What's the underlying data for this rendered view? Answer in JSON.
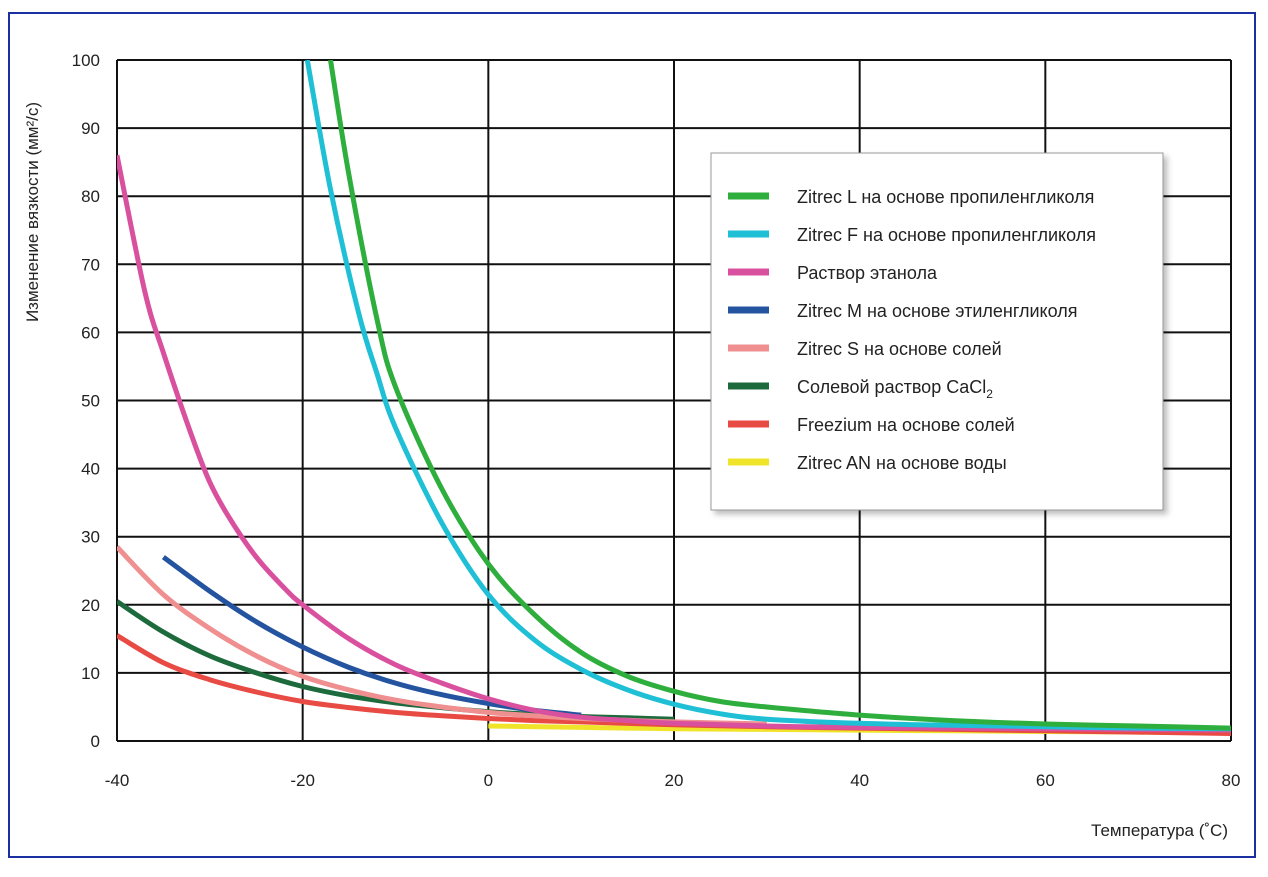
{
  "chart_data": {
    "type": "line",
    "ylabel": "Изменение вязкости (мм²/с)",
    "xlabel": "Температура (˚С)",
    "xlim": [
      -40,
      80
    ],
    "ylim": [
      0,
      100
    ],
    "xticks": [
      -40,
      -20,
      0,
      20,
      40,
      60,
      80
    ],
    "yticks": [
      0,
      10,
      20,
      30,
      40,
      50,
      60,
      70,
      80,
      90,
      100
    ],
    "xtick_labels": [
      "-40",
      "-20",
      "0",
      "20",
      "40",
      "60",
      "80"
    ],
    "ytick_labels": [
      "0",
      "10",
      "20",
      "30",
      "40",
      "50",
      "60",
      "70",
      "80",
      "90",
      "100"
    ],
    "grid": true,
    "legend_position": "top-right",
    "series": [
      {
        "name": "Zitrec L на основе пропиленгликоля",
        "color": "#2eae3c",
        "x": [
          -17,
          -15,
          -12,
          -10,
          -5,
          0,
          5,
          10,
          15,
          20,
          25,
          30,
          40,
          50,
          60,
          70,
          80
        ],
        "y": [
          100,
          83,
          62,
          52,
          37,
          26,
          18.5,
          13,
          9.5,
          7.3,
          5.8,
          5,
          3.8,
          3,
          2.5,
          2.2,
          1.9
        ]
      },
      {
        "name": "Zitrec F на основе пропиленгликоля",
        "color": "#1fbfd6",
        "x": [
          -19.5,
          -17,
          -14,
          -12,
          -10,
          -5,
          0,
          5,
          10,
          15,
          20,
          25,
          30,
          40,
          50,
          60,
          70,
          80
        ],
        "y": [
          100,
          81,
          63,
          54,
          46,
          32,
          21.5,
          14.8,
          10.5,
          7.5,
          5.4,
          4,
          3.2,
          2.6,
          2.3,
          2.1,
          1.9,
          1.8
        ]
      },
      {
        "name": "Раствор этанола",
        "color": "#d9519e",
        "x": [
          -40,
          -37,
          -35,
          -32,
          -30,
          -28,
          -25,
          -22,
          -20,
          -15,
          -10,
          -5,
          0,
          5,
          10,
          15,
          20,
          30,
          40,
          60,
          80
        ],
        "y": [
          86,
          66,
          57,
          45,
          38,
          33,
          27,
          22.5,
          20,
          15,
          11.2,
          8.5,
          6.2,
          4.5,
          3.5,
          3,
          2.6,
          2.2,
          2,
          1.8,
          1.6
        ]
      },
      {
        "name": "Zitrec M на основе этиленгликоля",
        "color": "#2453a0",
        "x": [
          -35,
          -30,
          -25,
          -20,
          -15,
          -10,
          -5,
          0,
          5,
          10
        ],
        "y": [
          27,
          22,
          17.5,
          13.8,
          10.8,
          8.5,
          6.8,
          5.5,
          4.5,
          3.8
        ]
      },
      {
        "name": "Zitrec S на основе солей",
        "color": "#ef8f8f",
        "x": [
          -40,
          -35,
          -30,
          -25,
          -20,
          -15,
          -10,
          -5,
          0,
          5,
          10,
          20,
          30
        ],
        "y": [
          28.5,
          21.5,
          16.5,
          12.5,
          9.5,
          7.5,
          6,
          5,
          4.2,
          3.7,
          3.3,
          2.8,
          2.5
        ]
      },
      {
        "name": "Солевой раствор CaCl2",
        "color": "#1d6a3c",
        "x": [
          -40,
          -35,
          -30,
          -25,
          -20,
          -15,
          -10,
          -5,
          0,
          5,
          10,
          15,
          20
        ],
        "y": [
          20.5,
          16,
          12.5,
          10,
          8,
          6.6,
          5.6,
          4.9,
          4.3,
          3.9,
          3.6,
          3.4,
          3.2
        ]
      },
      {
        "name": "Freezium на основе солей",
        "color": "#e84a44",
        "x": [
          -40,
          -35,
          -30,
          -25,
          -20,
          -15,
          -10,
          -5,
          0,
          5,
          10,
          20,
          30,
          40,
          50,
          60,
          70,
          80
        ],
        "y": [
          15.5,
          11.5,
          9,
          7.2,
          5.8,
          4.9,
          4.2,
          3.7,
          3.3,
          3,
          2.8,
          2.4,
          2.1,
          1.9,
          1.7,
          1.5,
          1.3,
          1.1
        ]
      },
      {
        "name": "Zitrec AN на основе воды",
        "color": "#f0e42a",
        "x": [
          0,
          10,
          20,
          30,
          40,
          50,
          60,
          70,
          80
        ],
        "y": [
          2.2,
          2,
          1.8,
          1.7,
          1.6,
          1.5,
          1.4,
          1.3,
          1.2
        ]
      }
    ],
    "legend_labels": [
      {
        "main": "Zitrec L на основе пропиленгликоля",
        "sub": ""
      },
      {
        "main": "Zitrec F на основе пропиленгликоля",
        "sub": ""
      },
      {
        "main": "Раствор этанола",
        "sub": ""
      },
      {
        "main": "Zitrec M на основе этиленгликоля",
        "sub": ""
      },
      {
        "main": "Zitrec S на основе солей",
        "sub": ""
      },
      {
        "main": "Солевой раствор CaCl",
        "sub": "2"
      },
      {
        "main": "Freezium на основе солей",
        "sub": ""
      },
      {
        "main": "Zitrec AN на основе воды",
        "sub": ""
      }
    ]
  }
}
